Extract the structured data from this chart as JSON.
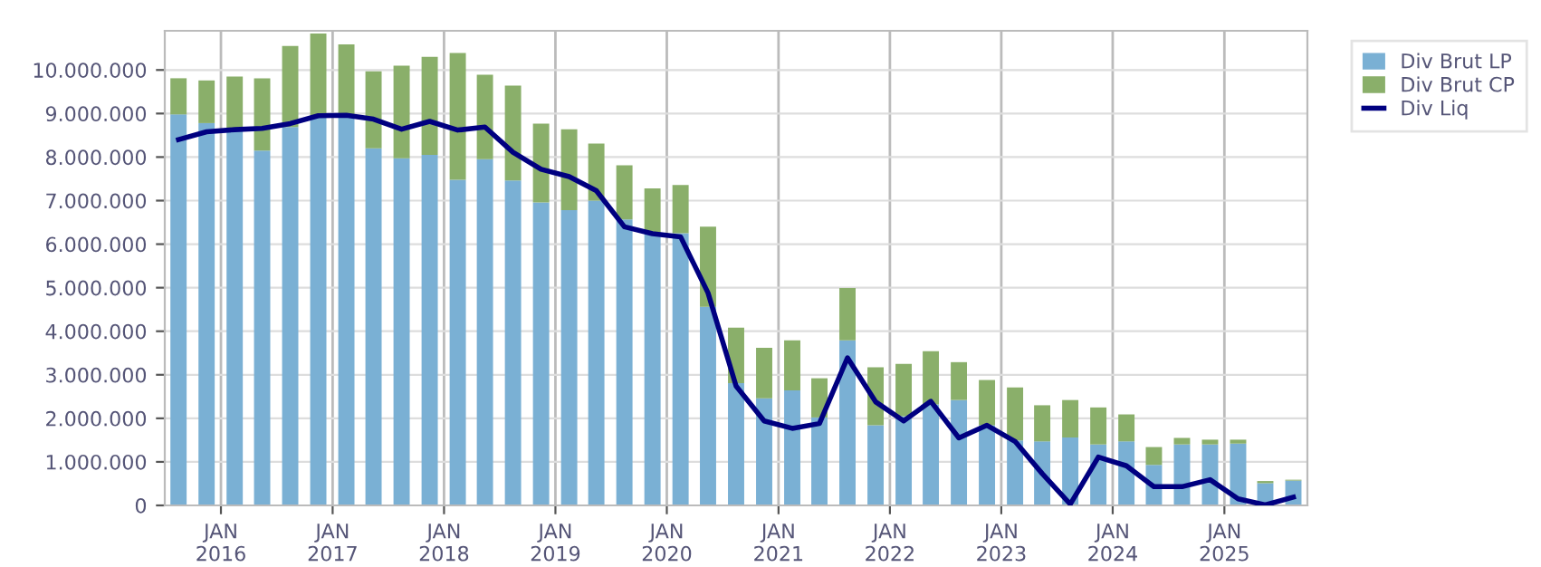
{
  "chart_data": {
    "type": "bar",
    "stacked": true,
    "x": [
      "2015-08-15",
      "2015-11-15",
      "2016-02-15",
      "2016-05-15",
      "2016-08-15",
      "2016-11-15",
      "2017-02-15",
      "2017-05-15",
      "2017-08-15",
      "2017-11-15",
      "2018-02-15",
      "2018-05-15",
      "2018-08-15",
      "2018-11-15",
      "2019-02-15",
      "2019-05-15",
      "2019-08-15",
      "2019-11-15",
      "2020-02-15",
      "2020-05-15",
      "2020-08-15",
      "2020-11-15",
      "2021-02-15",
      "2021-05-15",
      "2021-08-15",
      "2021-11-15",
      "2022-02-15",
      "2022-05-15",
      "2022-08-15",
      "2022-11-15",
      "2023-02-15",
      "2023-05-15",
      "2023-08-15",
      "2023-11-15",
      "2024-02-15",
      "2024-05-15",
      "2024-08-15",
      "2024-11-15",
      "2025-02-15",
      "2025-05-15",
      "2025-08-15"
    ],
    "series": [
      {
        "name": "Div Brut LP",
        "color": "#7ab0d4",
        "values": [
          8980000,
          8780000,
          8640000,
          8150000,
          8690000,
          8960000,
          8960000,
          8200000,
          7970000,
          8050000,
          7480000,
          7950000,
          7460000,
          6960000,
          6780000,
          7000000,
          6570000,
          6250000,
          6250000,
          4560000,
          2810000,
          2460000,
          2640000,
          2020000,
          3790000,
          1840000,
          2050000,
          2320000,
          2420000,
          1840000,
          1490000,
          1470000,
          1560000,
          1400000,
          1470000,
          930000,
          1400000,
          1400000,
          1420000,
          510000,
          570000
        ]
      },
      {
        "name": "Div Brut CP",
        "color": "#8aaf6a",
        "values": [
          830000,
          980000,
          1210000,
          1660000,
          1860000,
          1880000,
          1630000,
          1770000,
          2130000,
          2250000,
          2910000,
          1940000,
          2180000,
          1810000,
          1860000,
          1310000,
          1240000,
          1030000,
          1110000,
          1840000,
          1270000,
          1160000,
          1150000,
          900000,
          1200000,
          1330000,
          1200000,
          1220000,
          870000,
          1040000,
          1220000,
          830000,
          860000,
          850000,
          620000,
          410000,
          150000,
          110000,
          90000,
          50000,
          20000
        ]
      },
      {
        "name": "Div Liq",
        "type": "line",
        "color": "#000080",
        "values": [
          8400000,
          8580000,
          8630000,
          8660000,
          8770000,
          8950000,
          8960000,
          8870000,
          8640000,
          8820000,
          8620000,
          8690000,
          8110000,
          7720000,
          7550000,
          7230000,
          6400000,
          6240000,
          6170000,
          4880000,
          2740000,
          1940000,
          1770000,
          1880000,
          3390000,
          2380000,
          1940000,
          2390000,
          1550000,
          1840000,
          1470000,
          730000,
          30000,
          1110000,
          910000,
          430000,
          430000,
          590000,
          150000,
          10000,
          190000
        ]
      }
    ],
    "xlim": [
      "2015-07-01",
      "2025-09-30"
    ],
    "xticks": [
      {
        "value": "2016-01-01",
        "label": "JAN\n2016"
      },
      {
        "value": "2017-01-01",
        "label": "JAN\n2017"
      },
      {
        "value": "2018-01-01",
        "label": "JAN\n2018"
      },
      {
        "value": "2019-01-01",
        "label": "JAN\n2019"
      },
      {
        "value": "2020-01-01",
        "label": "JAN\n2020"
      },
      {
        "value": "2021-01-01",
        "label": "JAN\n2021"
      },
      {
        "value": "2022-01-01",
        "label": "JAN\n2022"
      },
      {
        "value": "2023-01-01",
        "label": "JAN\n2023"
      },
      {
        "value": "2024-01-01",
        "label": "JAN\n2024"
      },
      {
        "value": "2025-01-01",
        "label": "JAN\n2025"
      }
    ],
    "ylim": [
      0,
      10900000
    ],
    "yticks": [
      0,
      {
        "value": 1000000,
        "label": "1.000.000"
      },
      {
        "value": 2000000,
        "label": "2.000.000"
      },
      {
        "value": 3000000,
        "label": "3.000.000"
      },
      {
        "value": 4000000,
        "label": "4.000.000"
      },
      {
        "value": 5000000,
        "label": "5.000.000"
      },
      {
        "value": 6000000,
        "label": "6.000.000"
      },
      {
        "value": 7000000,
        "label": "7.000.000"
      },
      {
        "value": 8000000,
        "label": "8.000.000"
      },
      {
        "value": 9000000,
        "label": "9.000.000"
      },
      {
        "value": 10000000,
        "label": "10.000.000"
      }
    ],
    "grid": true,
    "legend": "top right"
  }
}
